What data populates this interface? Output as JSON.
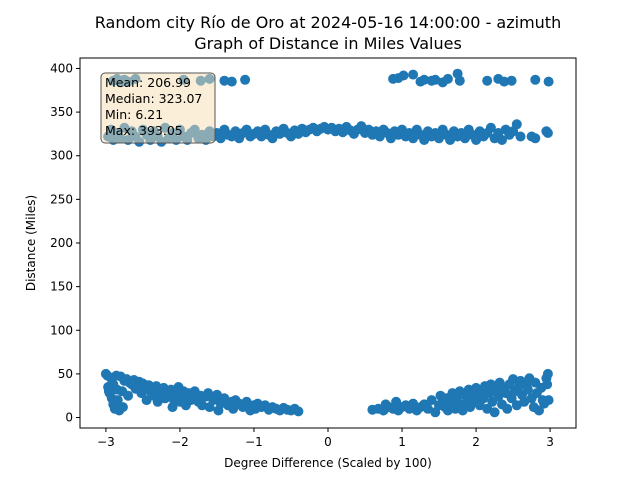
{
  "chart_data": {
    "type": "scatter",
    "title": "Random city Río de Oro at 2024-05-16 14:00:00  - azimuth",
    "subtitle": "Graph of Distance in Miles Values",
    "xlabel": "Degree Difference (Scaled by 100)",
    "ylabel": "Distance (Miles)",
    "xlim": [
      -3.35,
      3.35
    ],
    "ylim": [
      -12,
      412
    ],
    "xticks": [
      -3,
      -2,
      -1,
      0,
      1,
      2,
      3
    ],
    "yticks": [
      0,
      50,
      100,
      150,
      200,
      250,
      300,
      350,
      400
    ],
    "grid": false,
    "color": "#1f77b4",
    "stats_box": {
      "lines": [
        "Mean: 206.99",
        "Median: 323.07",
        "Min: 6.21",
        "Max: 393.05"
      ],
      "placement": "top-left",
      "facecolor": "#f5deb3"
    },
    "series": [
      {
        "points": [
          [
            -3.0,
            50
          ],
          [
            -2.98,
            48
          ],
          [
            -2.97,
            35
          ],
          [
            -2.96,
            30
          ],
          [
            -2.95,
            28
          ],
          [
            -2.93,
            45
          ],
          [
            -2.92,
            22
          ],
          [
            -2.9,
            38
          ],
          [
            -2.9,
            15
          ],
          [
            -2.88,
            10
          ],
          [
            -2.86,
            48
          ],
          [
            -2.85,
            32
          ],
          [
            -2.84,
            20
          ],
          [
            -2.82,
            8
          ],
          [
            -2.8,
            47
          ],
          [
            -2.78,
            30
          ],
          [
            -2.77,
            12
          ],
          [
            -2.75,
            42
          ],
          [
            -2.72,
            44
          ],
          [
            -2.7,
            25
          ],
          [
            -2.68,
            40
          ],
          [
            -2.65,
            38
          ],
          [
            -2.62,
            43
          ],
          [
            -2.6,
            33
          ],
          [
            -2.58,
            36
          ],
          [
            -2.55,
            41
          ],
          [
            -2.52,
            28
          ],
          [
            -2.5,
            39
          ],
          [
            -2.48,
            35
          ],
          [
            -2.45,
            20
          ],
          [
            -2.42,
            37
          ],
          [
            -2.4,
            30
          ],
          [
            -2.38,
            33
          ],
          [
            -2.35,
            25
          ],
          [
            -2.32,
            36
          ],
          [
            -2.3,
            18
          ],
          [
            -2.28,
            31
          ],
          [
            -2.25,
            27
          ],
          [
            -2.22,
            34
          ],
          [
            -2.2,
            22
          ],
          [
            -2.18,
            30
          ],
          [
            -2.15,
            26
          ],
          [
            -2.12,
            32
          ],
          [
            -2.1,
            12
          ],
          [
            -2.08,
            20
          ],
          [
            -2.05,
            28
          ],
          [
            -2.02,
            35
          ],
          [
            -2.0,
            18
          ],
          [
            -1.98,
            25
          ],
          [
            -1.95,
            30
          ],
          [
            -1.92,
            14
          ],
          [
            -1.9,
            22
          ],
          [
            -1.88,
            28
          ],
          [
            -1.85,
            20
          ],
          [
            -1.82,
            26
          ],
          [
            -1.8,
            30
          ],
          [
            -1.75,
            18
          ],
          [
            -1.72,
            25
          ],
          [
            -1.7,
            14
          ],
          [
            -1.65,
            24
          ],
          [
            -1.62,
            28
          ],
          [
            -1.6,
            12
          ],
          [
            -1.55,
            20
          ],
          [
            -1.5,
            26
          ],
          [
            -1.48,
            8
          ],
          [
            -1.45,
            16
          ],
          [
            -1.4,
            22
          ],
          [
            -1.35,
            14
          ],
          [
            -1.3,
            18
          ],
          [
            -1.28,
            10
          ],
          [
            -1.25,
            20
          ],
          [
            -1.2,
            16
          ],
          [
            -1.15,
            12
          ],
          [
            -1.1,
            18
          ],
          [
            -1.05,
            8
          ],
          [
            -1.0,
            14
          ],
          [
            -0.98,
            10
          ],
          [
            -0.95,
            16
          ],
          [
            -0.9,
            12
          ],
          [
            -0.85,
            14
          ],
          [
            -0.8,
            9
          ],
          [
            -0.75,
            12
          ],
          [
            -0.7,
            10
          ],
          [
            -0.65,
            8
          ],
          [
            -0.6,
            11
          ],
          [
            -0.55,
            9
          ],
          [
            -0.5,
            8
          ],
          [
            -0.45,
            10
          ],
          [
            -0.4,
            7
          ],
          [
            0.6,
            9
          ],
          [
            0.68,
            10
          ],
          [
            0.75,
            8
          ],
          [
            0.78,
            15
          ],
          [
            0.82,
            12
          ],
          [
            0.88,
            10
          ],
          [
            0.92,
            18
          ],
          [
            0.95,
            8
          ],
          [
            1.0,
            12
          ],
          [
            1.05,
            14
          ],
          [
            1.1,
            10
          ],
          [
            1.15,
            16
          ],
          [
            1.2,
            8
          ],
          [
            1.25,
            12
          ],
          [
            1.3,
            15
          ],
          [
            1.35,
            10
          ],
          [
            1.4,
            20
          ],
          [
            1.45,
            6
          ],
          [
            1.5,
            14
          ],
          [
            1.52,
            25
          ],
          [
            1.55,
            18
          ],
          [
            1.58,
            12
          ],
          [
            1.6,
            22
          ],
          [
            1.62,
            8
          ],
          [
            1.65,
            16
          ],
          [
            1.68,
            28
          ],
          [
            1.7,
            20
          ],
          [
            1.72,
            10
          ],
          [
            1.75,
            24
          ],
          [
            1.78,
            30
          ],
          [
            1.8,
            15
          ],
          [
            1.82,
            8
          ],
          [
            1.85,
            26
          ],
          [
            1.88,
            20
          ],
          [
            1.9,
            32
          ],
          [
            1.92,
            12
          ],
          [
            1.95,
            28
          ],
          [
            1.98,
            18
          ],
          [
            2.0,
            34
          ],
          [
            2.02,
            25
          ],
          [
            2.05,
            14
          ],
          [
            2.08,
            30
          ],
          [
            2.1,
            22
          ],
          [
            2.12,
            36
          ],
          [
            2.15,
            10
          ],
          [
            2.18,
            28
          ],
          [
            2.2,
            38
          ],
          [
            2.22,
            18
          ],
          [
            2.25,
            6
          ],
          [
            2.28,
            32
          ],
          [
            2.3,
            24
          ],
          [
            2.32,
            40
          ],
          [
            2.35,
            15
          ],
          [
            2.38,
            34
          ],
          [
            2.4,
            28
          ],
          [
            2.42,
            10
          ],
          [
            2.45,
            38
          ],
          [
            2.48,
            22
          ],
          [
            2.5,
            44
          ],
          [
            2.52,
            30
          ],
          [
            2.55,
            14
          ],
          [
            2.58,
            36
          ],
          [
            2.6,
            42
          ],
          [
            2.62,
            26
          ],
          [
            2.65,
            18
          ],
          [
            2.68,
            38
          ],
          [
            2.7,
            32
          ],
          [
            2.72,
            45
          ],
          [
            2.75,
            22
          ],
          [
            2.78,
            12
          ],
          [
            2.8,
            40
          ],
          [
            2.82,
            28
          ],
          [
            2.85,
            8
          ],
          [
            2.88,
            34
          ],
          [
            2.9,
            20
          ],
          [
            2.92,
            16
          ],
          [
            2.95,
            45
          ],
          [
            2.96,
            38
          ],
          [
            2.97,
            50
          ],
          [
            2.98,
            20
          ],
          [
            -2.97,
            322
          ],
          [
            -2.93,
            330
          ],
          [
            -2.9,
            318
          ],
          [
            -2.85,
            326
          ],
          [
            -2.8,
            320
          ],
          [
            -2.75,
            332
          ],
          [
            -2.7,
            318
          ],
          [
            -2.65,
            328
          ],
          [
            -2.6,
            322
          ],
          [
            -2.55,
            316
          ],
          [
            -2.5,
            330
          ],
          [
            -2.45,
            324
          ],
          [
            -2.4,
            318
          ],
          [
            -2.35,
            328
          ],
          [
            -2.3,
            322
          ],
          [
            -2.25,
            316
          ],
          [
            -2.2,
            332
          ],
          [
            -2.15,
            320
          ],
          [
            -2.1,
            326
          ],
          [
            -2.05,
            318
          ],
          [
            -2.0,
            330
          ],
          [
            -1.95,
            322
          ],
          [
            -1.9,
            318
          ],
          [
            -1.85,
            326
          ],
          [
            -1.8,
            330
          ],
          [
            -1.75,
            320
          ],
          [
            -1.7,
            324
          ],
          [
            -1.65,
            318
          ],
          [
            -1.6,
            328
          ],
          [
            -1.55,
            322
          ],
          [
            -1.5,
            326
          ],
          [
            -1.45,
            320
          ],
          [
            -1.4,
            330
          ],
          [
            -1.35,
            324
          ],
          [
            -1.3,
            322
          ],
          [
            -1.25,
            328
          ],
          [
            -1.2,
            320
          ],
          [
            -1.15,
            326
          ],
          [
            -1.1,
            330
          ],
          [
            -1.05,
            322
          ],
          [
            -1.0,
            325
          ],
          [
            -0.95,
            328
          ],
          [
            -0.9,
            322
          ],
          [
            -0.85,
            330
          ],
          [
            -0.8,
            324
          ],
          [
            -0.75,
            320
          ],
          [
            -0.7,
            328
          ],
          [
            -0.65,
            325
          ],
          [
            -0.6,
            331
          ],
          [
            -0.55,
            326
          ],
          [
            -0.5,
            322
          ],
          [
            -0.45,
            329
          ],
          [
            -0.4,
            325
          ],
          [
            -0.35,
            331
          ],
          [
            -0.3,
            327
          ],
          [
            -0.25,
            330
          ],
          [
            -0.2,
            332
          ],
          [
            -0.15,
            328
          ],
          [
            -0.1,
            331
          ],
          [
            -0.05,
            333
          ],
          [
            0.0,
            330
          ],
          [
            0.05,
            332
          ],
          [
            0.1,
            328
          ],
          [
            0.15,
            331
          ],
          [
            0.2,
            327
          ],
          [
            0.25,
            333
          ],
          [
            0.3,
            329
          ],
          [
            0.35,
            325
          ],
          [
            0.4,
            330
          ],
          [
            0.45,
            334
          ],
          [
            0.5,
            326
          ],
          [
            0.55,
            330
          ],
          [
            0.6,
            324
          ],
          [
            0.65,
            328
          ],
          [
            0.7,
            322
          ],
          [
            0.75,
            330
          ],
          [
            0.8,
            326
          ],
          [
            0.85,
            320
          ],
          [
            0.9,
            328
          ],
          [
            0.95,
            324
          ],
          [
            1.0,
            330
          ],
          [
            1.05,
            322
          ],
          [
            1.1,
            326
          ],
          [
            1.15,
            320
          ],
          [
            1.2,
            330
          ],
          [
            1.25,
            324
          ],
          [
            1.3,
            318
          ],
          [
            1.35,
            328
          ],
          [
            1.4,
            322
          ],
          [
            1.45,
            326
          ],
          [
            1.5,
            320
          ],
          [
            1.55,
            330
          ],
          [
            1.6,
            324
          ],
          [
            1.65,
            318
          ],
          [
            1.7,
            328
          ],
          [
            1.75,
            322
          ],
          [
            1.8,
            326
          ],
          [
            1.85,
            320
          ],
          [
            1.9,
            330
          ],
          [
            1.95,
            324
          ],
          [
            2.0,
            318
          ],
          [
            2.05,
            328
          ],
          [
            2.1,
            322
          ],
          [
            2.15,
            326
          ],
          [
            2.2,
            332
          ],
          [
            2.25,
            320
          ],
          [
            2.3,
            326
          ],
          [
            2.35,
            318
          ],
          [
            2.4,
            330
          ],
          [
            2.45,
            324
          ],
          [
            2.5,
            328
          ],
          [
            2.55,
            336
          ],
          [
            2.6,
            322
          ],
          [
            2.75,
            322
          ],
          [
            2.8,
            320
          ],
          [
            2.95,
            328
          ],
          [
            2.97,
            326
          ],
          [
            -2.9,
            386
          ],
          [
            -2.85,
            388
          ],
          [
            -2.8,
            384
          ],
          [
            -2.75,
            387
          ],
          [
            -2.7,
            385
          ],
          [
            -2.6,
            388
          ],
          [
            -1.95,
            387
          ],
          [
            -1.72,
            386
          ],
          [
            -1.6,
            388
          ],
          [
            -1.4,
            386
          ],
          [
            -1.3,
            385
          ],
          [
            -1.12,
            387
          ],
          [
            0.88,
            388
          ],
          [
            0.95,
            389
          ],
          [
            1.02,
            392
          ],
          [
            1.15,
            393
          ],
          [
            1.25,
            385
          ],
          [
            1.3,
            387
          ],
          [
            1.4,
            386
          ],
          [
            1.45,
            387
          ],
          [
            1.55,
            384
          ],
          [
            1.62,
            388
          ],
          [
            1.75,
            394
          ],
          [
            1.78,
            386
          ],
          [
            2.15,
            386
          ],
          [
            2.3,
            388
          ],
          [
            2.38,
            385
          ],
          [
            2.48,
            386
          ],
          [
            2.8,
            387
          ],
          [
            2.98,
            385
          ]
        ]
      }
    ]
  }
}
